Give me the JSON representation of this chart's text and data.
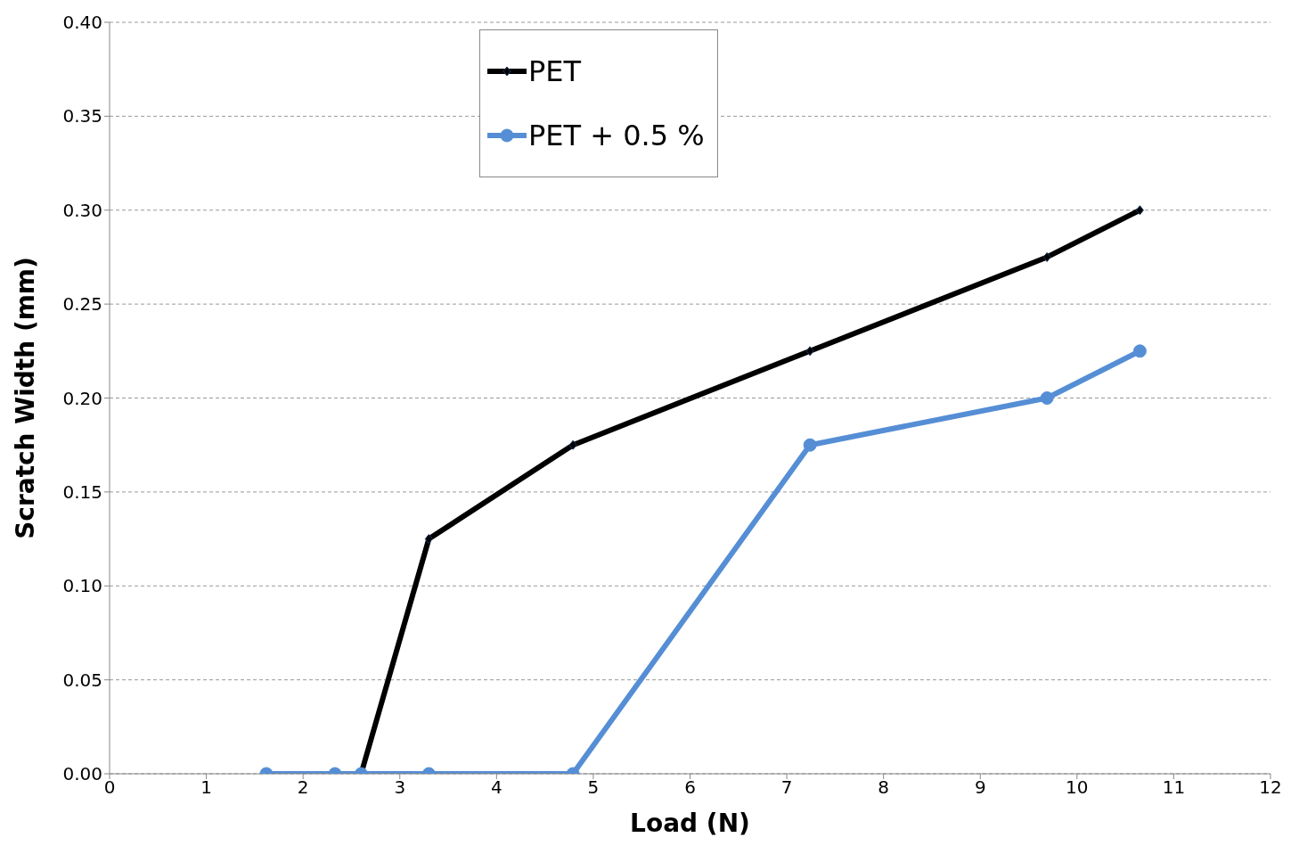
{
  "chart_data": {
    "type": "line",
    "xlabel": "Load (N)",
    "ylabel": "Scratch Width (mm)",
    "series": [
      {
        "name": "PET",
        "color": "#000000",
        "marker": "diamond",
        "x": [
          2.6,
          3.3,
          4.79,
          7.24,
          9.69,
          10.65
        ],
        "values": [
          0,
          0.125,
          0.175,
          0.225,
          0.275,
          0.3
        ]
      },
      {
        "name": "PET + 0.5 %",
        "color": "#558ed5",
        "marker": "circle",
        "x": [
          1.62,
          2.33,
          2.6,
          3.3,
          4.79,
          7.24,
          9.69,
          10.65
        ],
        "values": [
          0,
          0,
          0,
          0,
          0,
          0.175,
          0.2,
          0.225
        ]
      }
    ],
    "xlim": [
      0,
      12
    ],
    "xticks": [
      0,
      1,
      2,
      3,
      4,
      5,
      6,
      7,
      8,
      9,
      10,
      11,
      12
    ],
    "ylim": [
      0,
      0.4
    ],
    "yticks": [
      {
        "value": 0,
        "label": "0.00"
      },
      {
        "value": 0.05,
        "label": "0.05"
      },
      {
        "value": 0.1,
        "label": "0.10"
      },
      {
        "value": 0.15,
        "label": "0.15"
      },
      {
        "value": 0.2,
        "label": "0.20"
      },
      {
        "value": 0.25,
        "label": "0.25"
      },
      {
        "value": 0.3,
        "label": "0.30"
      },
      {
        "value": 0.35,
        "label": "0.35"
      },
      {
        "value": 0.4,
        "label": "0.40"
      }
    ],
    "grid": "y",
    "legend": "top left",
    "line_style": "solid"
  }
}
